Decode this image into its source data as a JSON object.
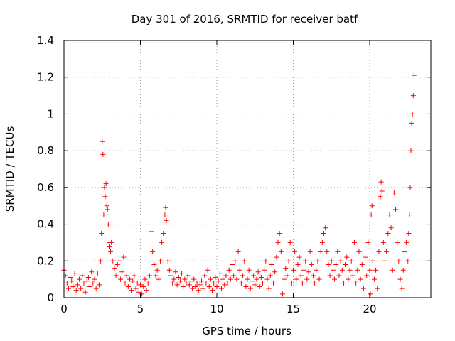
{
  "chart_data": {
    "type": "scatter",
    "title": "Day 301 of 2016, SRMTID for receiver batf",
    "xlabel": "GPS time / hours",
    "ylabel": "SRMTID / TECUs",
    "xlim": [
      0,
      24
    ],
    "ylim": [
      0,
      1.4
    ],
    "xticks": [
      0,
      5,
      10,
      15,
      20
    ],
    "yticks": [
      0,
      0.2,
      0.4,
      0.6,
      0.8,
      1,
      1.2,
      1.4
    ],
    "xtick_labels": [
      "0",
      "5",
      "10",
      "15",
      "20"
    ],
    "ytick_labels": [
      "0",
      "0.2",
      "0.4",
      "0.6",
      "0.8",
      "1",
      "1.2",
      "1.4"
    ],
    "grid": true,
    "marker": "+",
    "color": "#ff0000",
    "series": [
      {
        "name": "SRMTID",
        "points": [
          [
            0.0,
            0.15
          ],
          [
            0.1,
            0.12
          ],
          [
            0.2,
            0.08
          ],
          [
            0.3,
            0.05
          ],
          [
            0.4,
            0.11
          ],
          [
            0.5,
            0.09
          ],
          [
            0.6,
            0.06
          ],
          [
            0.7,
            0.13
          ],
          [
            0.8,
            0.04
          ],
          [
            0.9,
            0.07
          ],
          [
            1.0,
            0.1
          ],
          [
            1.1,
            0.05
          ],
          [
            1.2,
            0.12
          ],
          [
            1.3,
            0.08
          ],
          [
            1.4,
            0.03
          ],
          [
            1.5,
            0.09
          ],
          [
            1.6,
            0.11
          ],
          [
            1.7,
            0.06
          ],
          [
            1.8,
            0.14
          ],
          [
            1.9,
            0.08
          ],
          [
            2.0,
            0.1
          ],
          [
            2.1,
            0.05
          ],
          [
            2.2,
            0.13
          ],
          [
            2.3,
            0.07
          ],
          [
            2.4,
            0.2
          ],
          [
            2.45,
            0.35
          ],
          [
            2.5,
            0.85
          ],
          [
            2.55,
            0.78
          ],
          [
            2.6,
            0.45
          ],
          [
            2.65,
            0.6
          ],
          [
            2.7,
            0.55
          ],
          [
            2.75,
            0.62
          ],
          [
            2.8,
            0.5
          ],
          [
            2.85,
            0.48
          ],
          [
            2.9,
            0.4
          ],
          [
            2.95,
            0.3
          ],
          [
            3.0,
            0.28
          ],
          [
            3.05,
            0.25
          ],
          [
            3.1,
            0.3
          ],
          [
            3.2,
            0.2
          ],
          [
            3.3,
            0.16
          ],
          [
            3.4,
            0.12
          ],
          [
            3.5,
            0.18
          ],
          [
            3.6,
            0.2
          ],
          [
            3.7,
            0.1
          ],
          [
            3.8,
            0.14
          ],
          [
            3.9,
            0.22
          ],
          [
            4.0,
            0.08
          ],
          [
            4.1,
            0.12
          ],
          [
            4.2,
            0.06
          ],
          [
            4.3,
            0.1
          ],
          [
            4.4,
            0.04
          ],
          [
            4.5,
            0.09
          ],
          [
            4.6,
            0.12
          ],
          [
            4.7,
            0.05
          ],
          [
            4.8,
            0.08
          ],
          [
            4.9,
            0.03
          ],
          [
            5.0,
            0.07
          ],
          [
            5.1,
            0.02
          ],
          [
            5.2,
            0.06
          ],
          [
            5.3,
            0.1
          ],
          [
            5.4,
            0.04
          ],
          [
            5.5,
            0.08
          ],
          [
            5.6,
            0.12
          ],
          [
            5.7,
            0.36
          ],
          [
            5.8,
            0.25
          ],
          [
            5.9,
            0.18
          ],
          [
            6.0,
            0.12
          ],
          [
            6.1,
            0.15
          ],
          [
            6.2,
            0.1
          ],
          [
            6.3,
            0.2
          ],
          [
            6.4,
            0.3
          ],
          [
            6.5,
            0.35
          ],
          [
            6.6,
            0.45
          ],
          [
            6.65,
            0.49
          ],
          [
            6.7,
            0.42
          ],
          [
            6.8,
            0.2
          ],
          [
            6.9,
            0.15
          ],
          [
            7.0,
            0.12
          ],
          [
            7.1,
            0.08
          ],
          [
            7.2,
            0.1
          ],
          [
            7.3,
            0.14
          ],
          [
            7.4,
            0.07
          ],
          [
            7.5,
            0.11
          ],
          [
            7.6,
            0.09
          ],
          [
            7.7,
            0.13
          ],
          [
            7.8,
            0.06
          ],
          [
            7.9,
            0.1
          ],
          [
            8.0,
            0.08
          ],
          [
            8.1,
            0.12
          ],
          [
            8.2,
            0.07
          ],
          [
            8.3,
            0.09
          ],
          [
            8.4,
            0.05
          ],
          [
            8.5,
            0.1
          ],
          [
            8.6,
            0.06
          ],
          [
            8.7,
            0.08
          ],
          [
            8.8,
            0.04
          ],
          [
            8.9,
            0.07
          ],
          [
            9.0,
            0.09
          ],
          [
            9.1,
            0.05
          ],
          [
            9.2,
            0.12
          ],
          [
            9.3,
            0.08
          ],
          [
            9.4,
            0.15
          ],
          [
            9.5,
            0.06
          ],
          [
            9.6,
            0.1
          ],
          [
            9.7,
            0.04
          ],
          [
            9.8,
            0.08
          ],
          [
            9.9,
            0.11
          ],
          [
            10.0,
            0.06
          ],
          [
            10.1,
            0.09
          ],
          [
            10.2,
            0.13
          ],
          [
            10.3,
            0.05
          ],
          [
            10.4,
            0.1
          ],
          [
            10.5,
            0.07
          ],
          [
            10.6,
            0.12
          ],
          [
            10.7,
            0.08
          ],
          [
            10.8,
            0.15
          ],
          [
            10.9,
            0.1
          ],
          [
            11.0,
            0.18
          ],
          [
            11.1,
            0.12
          ],
          [
            11.2,
            0.2
          ],
          [
            11.3,
            0.1
          ],
          [
            11.4,
            0.25
          ],
          [
            11.5,
            0.15
          ],
          [
            11.6,
            0.08
          ],
          [
            11.7,
            0.12
          ],
          [
            11.8,
            0.2
          ],
          [
            11.9,
            0.06
          ],
          [
            12.0,
            0.1
          ],
          [
            12.1,
            0.15
          ],
          [
            12.2,
            0.05
          ],
          [
            12.3,
            0.09
          ],
          [
            12.4,
            0.12
          ],
          [
            12.5,
            0.07
          ],
          [
            12.6,
            0.1
          ],
          [
            12.7,
            0.14
          ],
          [
            12.8,
            0.06
          ],
          [
            12.9,
            0.11
          ],
          [
            13.0,
            0.08
          ],
          [
            13.1,
            0.15
          ],
          [
            13.2,
            0.2
          ],
          [
            13.3,
            0.1
          ],
          [
            13.4,
            0.05
          ],
          [
            13.5,
            0.12
          ],
          [
            13.6,
            0.18
          ],
          [
            13.7,
            0.08
          ],
          [
            13.8,
            0.14
          ],
          [
            13.9,
            0.22
          ],
          [
            14.0,
            0.3
          ],
          [
            14.1,
            0.35
          ],
          [
            14.2,
            0.25
          ],
          [
            14.3,
            0.02
          ],
          [
            14.4,
            0.1
          ],
          [
            14.5,
            0.16
          ],
          [
            14.6,
            0.12
          ],
          [
            14.7,
            0.2
          ],
          [
            14.8,
            0.3
          ],
          [
            14.9,
            0.08
          ],
          [
            15.0,
            0.15
          ],
          [
            15.1,
            0.25
          ],
          [
            15.2,
            0.1
          ],
          [
            15.3,
            0.18
          ],
          [
            15.4,
            0.22
          ],
          [
            15.5,
            0.12
          ],
          [
            15.6,
            0.08
          ],
          [
            15.7,
            0.15
          ],
          [
            15.8,
            0.2
          ],
          [
            15.9,
            0.1
          ],
          [
            16.0,
            0.14
          ],
          [
            16.1,
            0.25
          ],
          [
            16.2,
            0.18
          ],
          [
            16.3,
            0.12
          ],
          [
            16.4,
            0.08
          ],
          [
            16.5,
            0.15
          ],
          [
            16.6,
            0.2
          ],
          [
            16.7,
            0.1
          ],
          [
            16.8,
            0.25
          ],
          [
            16.9,
            0.3
          ],
          [
            17.0,
            0.35
          ],
          [
            17.1,
            0.38
          ],
          [
            17.2,
            0.25
          ],
          [
            17.3,
            0.18
          ],
          [
            17.4,
            0.12
          ],
          [
            17.5,
            0.2
          ],
          [
            17.6,
            0.15
          ],
          [
            17.7,
            0.1
          ],
          [
            17.8,
            0.18
          ],
          [
            17.9,
            0.25
          ],
          [
            18.0,
            0.12
          ],
          [
            18.1,
            0.2
          ],
          [
            18.2,
            0.15
          ],
          [
            18.3,
            0.08
          ],
          [
            18.4,
            0.18
          ],
          [
            18.5,
            0.22
          ],
          [
            18.6,
            0.1
          ],
          [
            18.7,
            0.15
          ],
          [
            18.8,
            0.2
          ],
          [
            18.9,
            0.12
          ],
          [
            19.0,
            0.3
          ],
          [
            19.1,
            0.08
          ],
          [
            19.2,
            0.15
          ],
          [
            19.3,
            0.25
          ],
          [
            19.4,
            0.1
          ],
          [
            19.5,
            0.18
          ],
          [
            19.6,
            0.05
          ],
          [
            19.7,
            0.22
          ],
          [
            19.8,
            0.12
          ],
          [
            19.9,
            0.3
          ],
          [
            20.0,
            0.15
          ],
          [
            20.05,
            0.02
          ],
          [
            20.1,
            0.45
          ],
          [
            20.15,
            0.5
          ],
          [
            20.2,
            0.2
          ],
          [
            20.3,
            0.1
          ],
          [
            20.4,
            0.15
          ],
          [
            20.5,
            0.05
          ],
          [
            20.6,
            0.25
          ],
          [
            20.7,
            0.55
          ],
          [
            20.75,
            0.63
          ],
          [
            20.8,
            0.58
          ],
          [
            20.9,
            0.3
          ],
          [
            21.0,
            0.2
          ],
          [
            21.1,
            0.25
          ],
          [
            21.2,
            0.35
          ],
          [
            21.3,
            0.45
          ],
          [
            21.4,
            0.38
          ],
          [
            21.5,
            0.15
          ],
          [
            21.6,
            0.57
          ],
          [
            21.7,
            0.48
          ],
          [
            21.8,
            0.3
          ],
          [
            21.9,
            0.2
          ],
          [
            22.0,
            0.1
          ],
          [
            22.1,
            0.05
          ],
          [
            22.2,
            0.15
          ],
          [
            22.3,
            0.25
          ],
          [
            22.4,
            0.3
          ],
          [
            22.5,
            0.2
          ],
          [
            22.55,
            0.35
          ],
          [
            22.6,
            0.45
          ],
          [
            22.65,
            0.6
          ],
          [
            22.7,
            0.8
          ],
          [
            22.75,
            0.95
          ],
          [
            22.8,
            1.0
          ],
          [
            22.85,
            1.1
          ],
          [
            22.9,
            1.21
          ]
        ]
      }
    ]
  }
}
